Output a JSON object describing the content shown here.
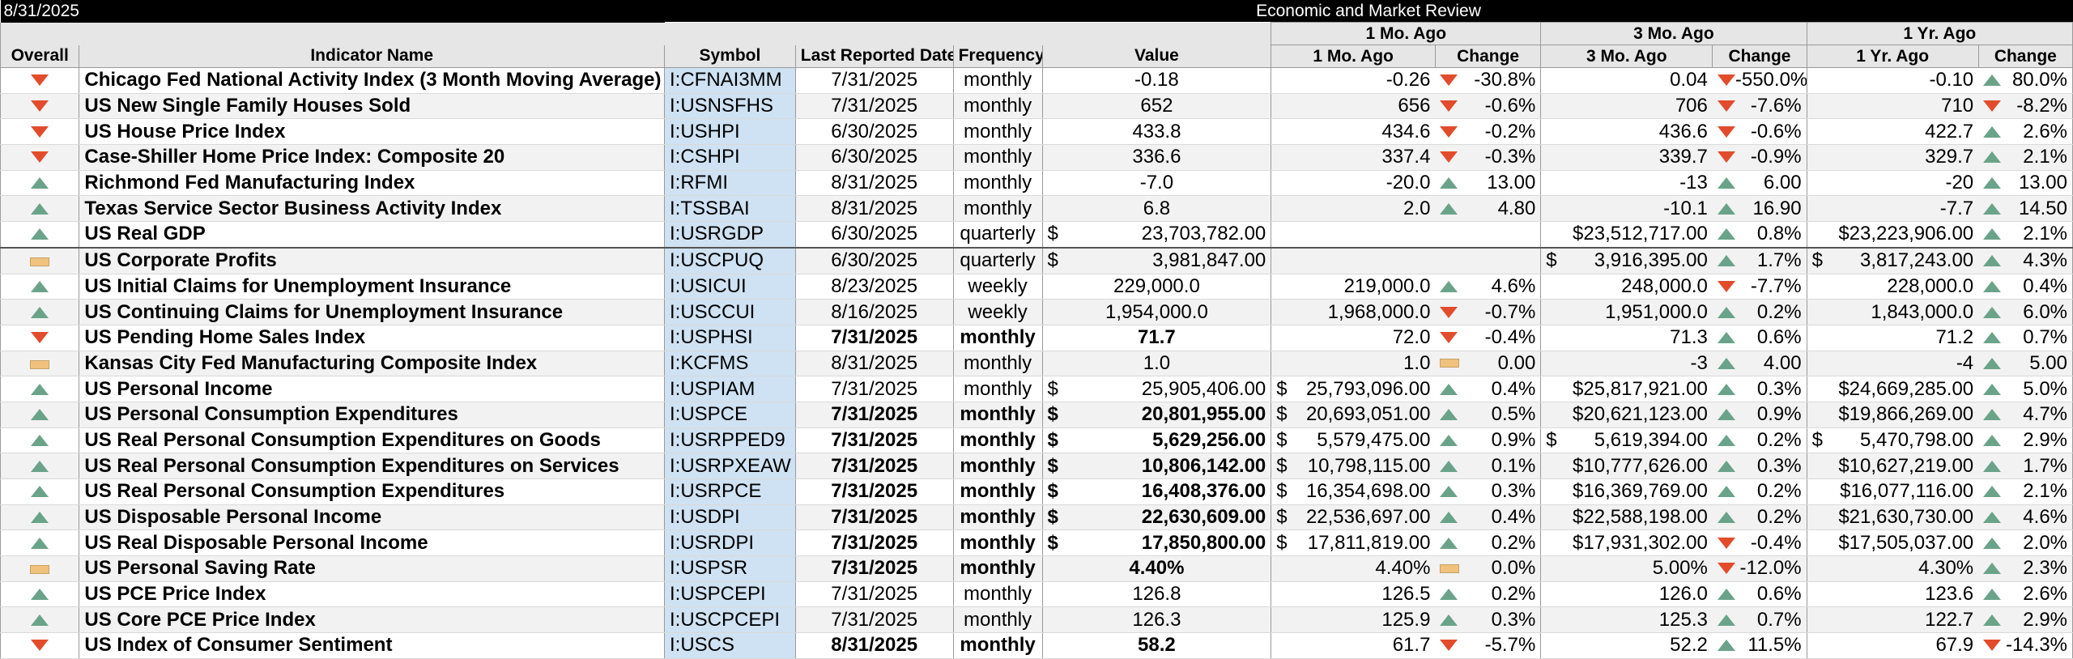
{
  "header": {
    "date": "8/31/2025",
    "title": "Economic and Market Review",
    "groups": [
      "1 Mo. Ago",
      "3 Mo. Ago",
      "1 Yr. Ago"
    ],
    "columns": [
      "Overall",
      "Indicator Name",
      "Symbol",
      "Last Reported Date",
      "Frequency",
      "Value",
      "1 Mo. Ago",
      "Change",
      "3 Mo. Ago",
      "Change",
      "1 Yr. Ago",
      "Change"
    ]
  },
  "colors": {
    "up": "#6aa389",
    "down": "#e24c2c",
    "flat": "#f1c27d",
    "symbol_bg": "#cfe2f3"
  },
  "rows": [
    {
      "overall": "down",
      "name": "Chicago Fed National Activity Index (3 Month Moving Average)",
      "symbol": "I:CFNAI3MM",
      "date": "7/31/2025",
      "freq": "monthly",
      "value": "-0.18",
      "m1": "-0.26",
      "m1_dir": "down",
      "m1_chg": "-30.8%",
      "m3": "0.04",
      "m3_dir": "down",
      "m3_chg": "-550.0%",
      "y1": "-0.10",
      "y1_dir": "up",
      "y1_chg": "80.0%"
    },
    {
      "overall": "down",
      "name": "US New Single Family Houses Sold",
      "symbol": "I:USNSFHS",
      "date": "7/31/2025",
      "freq": "monthly",
      "value": "652",
      "m1": "656",
      "m1_dir": "down",
      "m1_chg": "-0.6%",
      "m3": "706",
      "m3_dir": "down",
      "m3_chg": "-7.6%",
      "y1": "710",
      "y1_dir": "down",
      "y1_chg": "-8.2%"
    },
    {
      "overall": "down",
      "name": "US House Price Index",
      "symbol": "I:USHPI",
      "date": "6/30/2025",
      "freq": "monthly",
      "value": "433.8",
      "m1": "434.6",
      "m1_dir": "down",
      "m1_chg": "-0.2%",
      "m3": "436.6",
      "m3_dir": "down",
      "m3_chg": "-0.6%",
      "y1": "422.7",
      "y1_dir": "up",
      "y1_chg": "2.6%"
    },
    {
      "overall": "down",
      "name": "Case-Shiller Home Price Index: Composite 20",
      "symbol": "I:CSHPI",
      "date": "6/30/2025",
      "freq": "monthly",
      "value": "336.6",
      "m1": "337.4",
      "m1_dir": "down",
      "m1_chg": "-0.3%",
      "m3": "339.7",
      "m3_dir": "down",
      "m3_chg": "-0.9%",
      "y1": "329.7",
      "y1_dir": "up",
      "y1_chg": "2.1%"
    },
    {
      "overall": "up",
      "name": "Richmond Fed Manufacturing Index",
      "symbol": "I:RFMI",
      "date": "8/31/2025",
      "freq": "monthly",
      "value": "-7.0",
      "m1": "-20.0",
      "m1_dir": "up",
      "m1_chg": "13.00",
      "m3": "-13",
      "m3_dir": "up",
      "m3_chg": "6.00",
      "y1": "-20",
      "y1_dir": "up",
      "y1_chg": "13.00"
    },
    {
      "overall": "up",
      "name": "Texas Service Sector Business Activity Index",
      "symbol": "I:TSSBAI",
      "date": "8/31/2025",
      "freq": "monthly",
      "value": "6.8",
      "m1": "2.0",
      "m1_dir": "up",
      "m1_chg": "4.80",
      "m3": "-10.1",
      "m3_dir": "up",
      "m3_chg": "16.90",
      "y1": "-7.7",
      "y1_dir": "up",
      "y1_chg": "14.50"
    },
    {
      "overall": "up",
      "name": "US Real GDP",
      "symbol": "I:USRGDP",
      "date": "6/30/2025",
      "freq": "quarterly",
      "value_cur": "$",
      "value": "23,703,782.00",
      "m1": "",
      "m1_dir": "none",
      "m1_chg": "",
      "m3": "$23,512,717.00",
      "m3_dir": "up",
      "m3_chg": "0.8%",
      "y1": "$23,223,906.00",
      "y1_dir": "up",
      "y1_chg": "2.1%"
    },
    {
      "overall": "flat",
      "name": "US Corporate Profits",
      "symbol": "I:USCPUQ",
      "date": "6/30/2025",
      "freq": "quarterly",
      "value_cur": "$",
      "value": "3,981,847.00",
      "m1": "",
      "m1_dir": "none",
      "m1_chg": "",
      "m3_cur": "$",
      "m3": "3,916,395.00",
      "m3_dir": "up",
      "m3_chg": "1.7%",
      "y1_cur": "$",
      "y1": "3,817,243.00",
      "y1_dir": "up",
      "y1_chg": "4.3%"
    },
    {
      "overall": "up",
      "name": "US Initial Claims for Unemployment Insurance",
      "symbol": "I:USICUI",
      "date": "8/23/2025",
      "freq": "weekly",
      "value": "229,000.0",
      "m1": "219,000.0",
      "m1_dir": "up",
      "m1_chg": "4.6%",
      "m3": "248,000.0",
      "m3_dir": "down",
      "m3_chg": "-7.7%",
      "y1": "228,000.0",
      "y1_dir": "up",
      "y1_chg": "0.4%"
    },
    {
      "overall": "up",
      "name": "US Continuing Claims for Unemployment Insurance",
      "symbol": "I:USCCUI",
      "date": "8/16/2025",
      "freq": "weekly",
      "value": "1,954,000.0",
      "m1": "1,968,000.0",
      "m1_dir": "down",
      "m1_chg": "-0.7%",
      "m3": "1,951,000.0",
      "m3_dir": "up",
      "m3_chg": "0.2%",
      "y1": "1,843,000.0",
      "y1_dir": "up",
      "y1_chg": "6.0%"
    },
    {
      "overall": "down",
      "bold": true,
      "name": "US Pending Home Sales Index",
      "symbol": "I:USPHSI",
      "date": "7/31/2025",
      "freq": "monthly",
      "value": "71.7",
      "m1": "72.0",
      "m1_dir": "down",
      "m1_chg": "-0.4%",
      "m3": "71.3",
      "m3_dir": "up",
      "m3_chg": "0.6%",
      "y1": "71.2",
      "y1_dir": "up",
      "y1_chg": "0.7%"
    },
    {
      "overall": "flat",
      "name": "Kansas City Fed Manufacturing Composite Index",
      "symbol": "I:KCFMS",
      "date": "8/31/2025",
      "freq": "monthly",
      "value": "1.0",
      "m1": "1.0",
      "m1_dir": "flat",
      "m1_chg": "0.00",
      "m3": "-3",
      "m3_dir": "up",
      "m3_chg": "4.00",
      "y1": "-4",
      "y1_dir": "up",
      "y1_chg": "5.00"
    },
    {
      "overall": "up",
      "name": "US Personal Income",
      "symbol": "I:USPIAM",
      "date": "7/31/2025",
      "freq": "monthly",
      "value_cur": "$",
      "value": "25,905,406.00",
      "m1_cur": "$",
      "m1": "25,793,096.00",
      "m1_dir": "up",
      "m1_chg": "0.4%",
      "m3": "$25,817,921.00",
      "m3_dir": "up",
      "m3_chg": "0.3%",
      "y1": "$24,669,285.00",
      "y1_dir": "up",
      "y1_chg": "5.0%"
    },
    {
      "overall": "up",
      "bold": true,
      "name": "US Personal Consumption Expenditures",
      "symbol": "I:USPCE",
      "date": "7/31/2025",
      "freq": "monthly",
      "value_cur": "$",
      "value": "20,801,955.00",
      "m1_cur": "$",
      "m1": "20,693,051.00",
      "m1_dir": "up",
      "m1_chg": "0.5%",
      "m3": "$20,621,123.00",
      "m3_dir": "up",
      "m3_chg": "0.9%",
      "y1": "$19,866,269.00",
      "y1_dir": "up",
      "y1_chg": "4.7%"
    },
    {
      "overall": "up",
      "bold": true,
      "name": "US Real Personal Consumption Expenditures on Goods",
      "symbol": "I:USRPPED9",
      "date": "7/31/2025",
      "freq": "monthly",
      "value_cur": "$",
      "value": "5,629,256.00",
      "m1_cur": "$",
      "m1": "5,579,475.00",
      "m1_dir": "up",
      "m1_chg": "0.9%",
      "m3_cur": "$",
      "m3": "5,619,394.00",
      "m3_dir": "up",
      "m3_chg": "0.2%",
      "y1_cur": "$",
      "y1": "5,470,798.00",
      "y1_dir": "up",
      "y1_chg": "2.9%"
    },
    {
      "overall": "up",
      "bold": true,
      "name": "US Real Personal Consumption Expenditures on Services",
      "symbol": "I:USRPXEAW",
      "date": "7/31/2025",
      "freq": "monthly",
      "value_cur": "$",
      "value": "10,806,142.00",
      "m1_cur": "$",
      "m1": "10,798,115.00",
      "m1_dir": "up",
      "m1_chg": "0.1%",
      "m3": "$10,777,626.00",
      "m3_dir": "up",
      "m3_chg": "0.3%",
      "y1": "$10,627,219.00",
      "y1_dir": "up",
      "y1_chg": "1.7%"
    },
    {
      "overall": "up",
      "bold": true,
      "name": "US Real Personal Consumption Expenditures",
      "symbol": "I:USRPCE",
      "date": "7/31/2025",
      "freq": "monthly",
      "value_cur": "$",
      "value": "16,408,376.00",
      "m1_cur": "$",
      "m1": "16,354,698.00",
      "m1_dir": "up",
      "m1_chg": "0.3%",
      "m3": "$16,369,769.00",
      "m3_dir": "up",
      "m3_chg": "0.2%",
      "y1": "$16,077,116.00",
      "y1_dir": "up",
      "y1_chg": "2.1%"
    },
    {
      "overall": "up",
      "bold": true,
      "name": "US Disposable Personal Income",
      "symbol": "I:USDPI",
      "date": "7/31/2025",
      "freq": "monthly",
      "value_cur": "$",
      "value": "22,630,609.00",
      "m1_cur": "$",
      "m1": "22,536,697.00",
      "m1_dir": "up",
      "m1_chg": "0.4%",
      "m3": "$22,588,198.00",
      "m3_dir": "up",
      "m3_chg": "0.2%",
      "y1": "$21,630,730.00",
      "y1_dir": "up",
      "y1_chg": "4.6%"
    },
    {
      "overall": "up",
      "bold": true,
      "name": "US Real Disposable Personal Income",
      "symbol": "I:USRDPI",
      "date": "7/31/2025",
      "freq": "monthly",
      "value_cur": "$",
      "value": "17,850,800.00",
      "m1_cur": "$",
      "m1": "17,811,819.00",
      "m1_dir": "up",
      "m1_chg": "0.2%",
      "m3": "$17,931,302.00",
      "m3_dir": "down",
      "m3_chg": "-0.4%",
      "y1": "$17,505,037.00",
      "y1_dir": "up",
      "y1_chg": "2.0%"
    },
    {
      "overall": "flat",
      "bold": true,
      "name": "US Personal Saving Rate",
      "symbol": "I:USPSR",
      "date": "7/31/2025",
      "freq": "monthly",
      "value": "4.40%",
      "m1": "4.40%",
      "m1_dir": "flat",
      "m1_chg": "0.0%",
      "m3": "5.00%",
      "m3_dir": "down",
      "m3_chg": "-12.0%",
      "y1": "4.30%",
      "y1_dir": "up",
      "y1_chg": "2.3%"
    },
    {
      "overall": "up",
      "name": "US PCE Price Index",
      "symbol": "I:USPCEPI",
      "date": "7/31/2025",
      "freq": "monthly",
      "value": "126.8",
      "m1": "126.5",
      "m1_dir": "up",
      "m1_chg": "0.2%",
      "m3": "126.0",
      "m3_dir": "up",
      "m3_chg": "0.6%",
      "y1": "123.6",
      "y1_dir": "up",
      "y1_chg": "2.6%"
    },
    {
      "overall": "up",
      "name": "US Core PCE Price Index",
      "symbol": "I:USCPCEPI",
      "date": "7/31/2025",
      "freq": "monthly",
      "value": "126.3",
      "m1": "125.9",
      "m1_dir": "up",
      "m1_chg": "0.3%",
      "m3": "125.3",
      "m3_dir": "up",
      "m3_chg": "0.7%",
      "y1": "122.7",
      "y1_dir": "up",
      "y1_chg": "2.9%"
    },
    {
      "overall": "down",
      "bold": true,
      "name": "US Index of Consumer Sentiment",
      "symbol": "I:USCS",
      "date": "8/31/2025",
      "freq": "monthly",
      "value": "58.2",
      "m1": "61.7",
      "m1_dir": "down",
      "m1_chg": "-5.7%",
      "m3": "52.2",
      "m3_dir": "up",
      "m3_chg": "11.5%",
      "y1": "67.9",
      "y1_dir": "down",
      "y1_chg": "-14.3%"
    }
  ]
}
